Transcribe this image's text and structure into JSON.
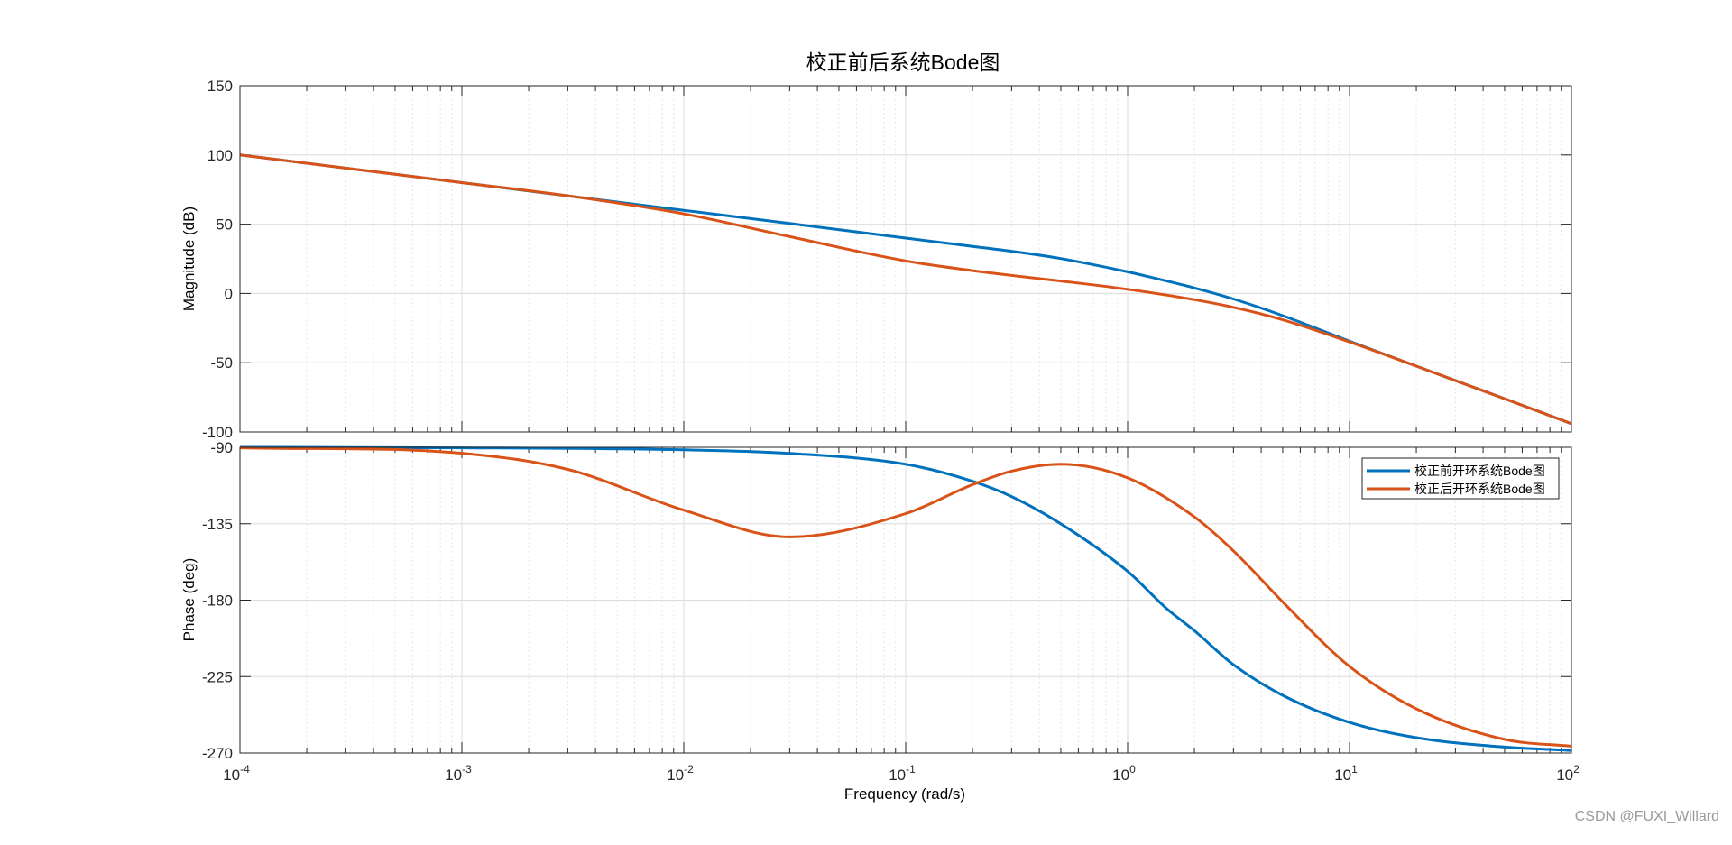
{
  "chart_data": {
    "type": "line",
    "title": "校正前后系统Bode图",
    "xlabel": "Frequency  (rad/s)",
    "xscale": "log",
    "xlim": [
      0.0001,
      100
    ],
    "x_ticks": [
      {
        "base": "10",
        "exp": "-4"
      },
      {
        "base": "10",
        "exp": "-3"
      },
      {
        "base": "10",
        "exp": "-2"
      },
      {
        "base": "10",
        "exp": "-1"
      },
      {
        "base": "10",
        "exp": "0"
      },
      {
        "base": "10",
        "exp": "1"
      },
      {
        "base": "10",
        "exp": "2"
      }
    ],
    "grid": true,
    "legend_position": "top-right of phase plot",
    "magnitude": {
      "ylabel": "Magnitude (dB)",
      "ylim": [
        -100,
        150
      ],
      "y_ticks": [
        "150",
        "100",
        "50",
        "0",
        "-50",
        "-100"
      ]
    },
    "phase": {
      "ylabel": "Phase (deg)",
      "ylim": [
        -270,
        -90
      ],
      "y_ticks": [
        "-90",
        "-135",
        "-180",
        "-225",
        "-270"
      ]
    },
    "series": [
      {
        "name": "校正前开环系统Bode图",
        "color": "#0072BD",
        "x": [
          0.0001,
          0.001,
          0.01,
          0.03,
          0.1,
          0.2,
          0.3,
          0.5,
          1,
          1.5,
          2,
          3,
          5,
          10,
          20,
          50,
          100
        ],
        "magnitude_db": [
          100,
          80,
          60,
          50.5,
          40,
          34,
          30.5,
          25.2,
          15.6,
          9,
          4,
          -4,
          -16,
          -34.5,
          -52.5,
          -76,
          -94
        ],
        "phase_deg": [
          -90,
          -90.3,
          -91.5,
          -93.6,
          -100,
          -110,
          -119,
          -135,
          -163,
          -185,
          -198,
          -218,
          -236,
          -252,
          -261,
          -266.5,
          -268.5
        ]
      },
      {
        "name": "校正后开环系统Bode图",
        "color": "#D95319",
        "x": [
          0.0001,
          0.001,
          0.003,
          0.01,
          0.03,
          0.1,
          0.2,
          0.3,
          0.5,
          1,
          2,
          3,
          5,
          10,
          20,
          50,
          100
        ],
        "magnitude_db": [
          100,
          80,
          70.5,
          57.5,
          41,
          23.5,
          16.5,
          13,
          9,
          3,
          -4.5,
          -10,
          -19,
          -35,
          -52.5,
          -76,
          -94
        ],
        "phase_deg": [
          -90.3,
          -93.5,
          -103,
          -127,
          -142.8,
          -129,
          -112,
          -104,
          -100,
          -108,
          -131,
          -151,
          -181,
          -219,
          -244,
          -262,
          -266
        ]
      }
    ]
  },
  "watermark": "CSDN @FUXI_Willard"
}
